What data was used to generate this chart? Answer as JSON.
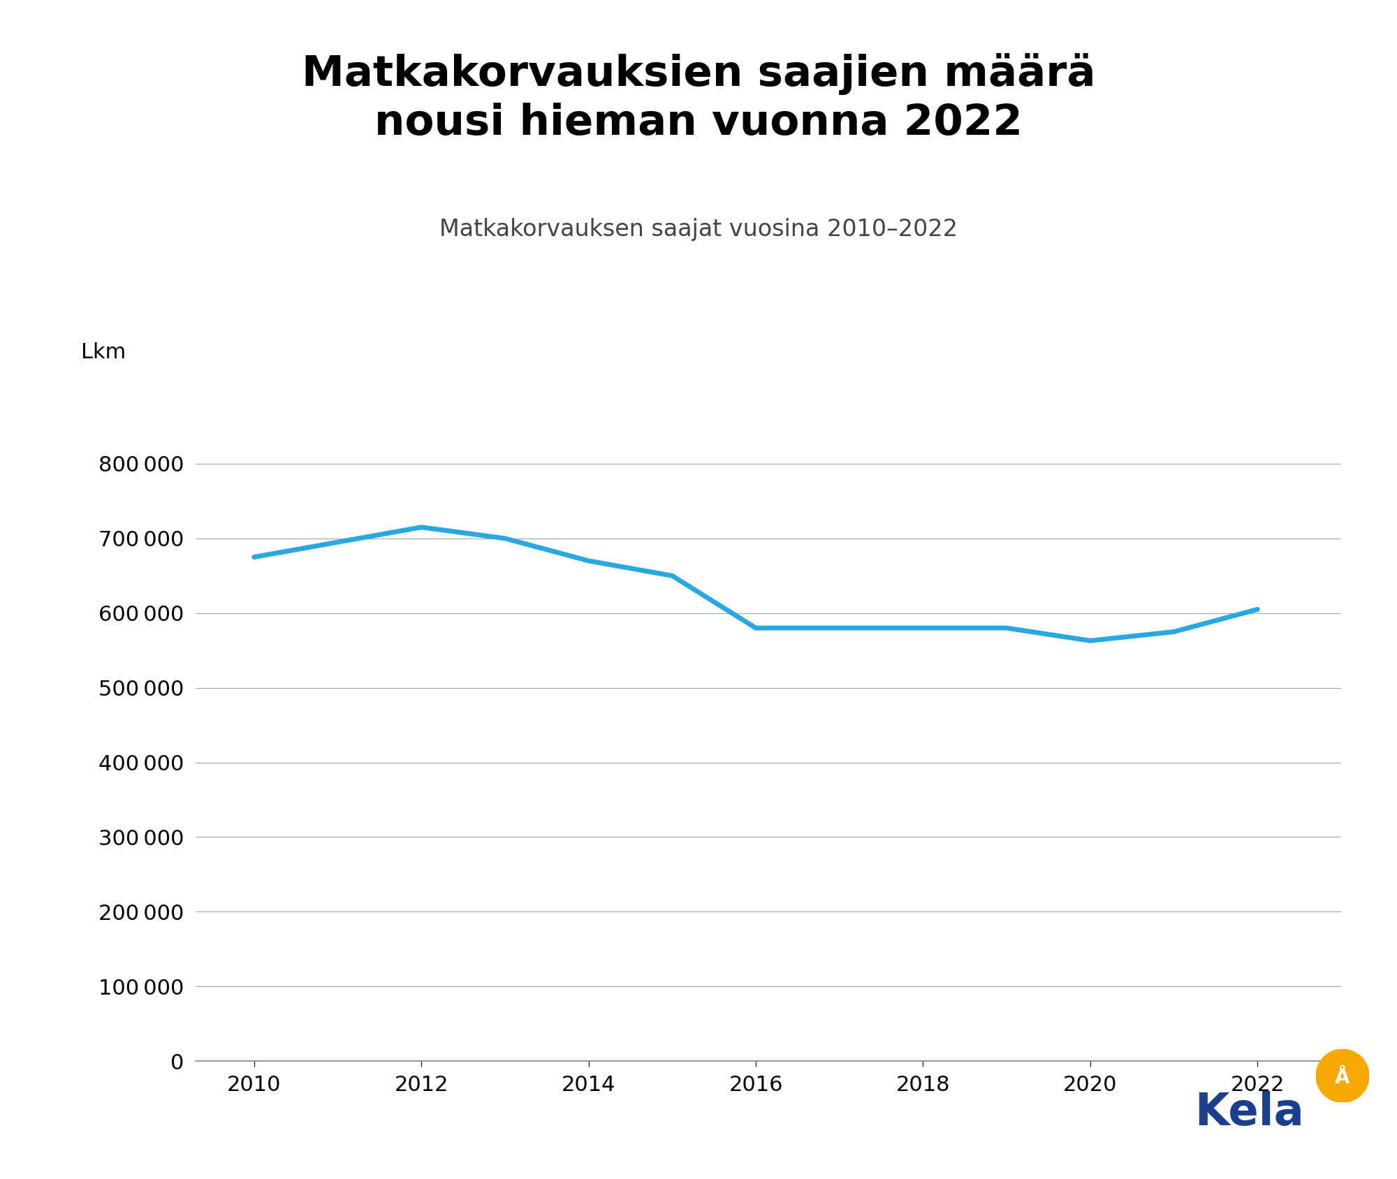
{
  "title": "Matkakorvauksien saajien määrä\nnousi hieman vuonna 2022",
  "subtitle": "Matkakorvauksen saajat vuosina 2010–2022",
  "ylabel": "Lkm",
  "years": [
    2010,
    2011,
    2012,
    2013,
    2014,
    2015,
    2016,
    2017,
    2018,
    2019,
    2020,
    2021,
    2022
  ],
  "values": [
    675000,
    695000,
    715000,
    700000,
    670000,
    650000,
    580000,
    580000,
    580000,
    580000,
    563000,
    575000,
    605000
  ],
  "line_color": "#29a8e0",
  "line_width": 5.0,
  "ylim": [
    0,
    900000
  ],
  "yticks": [
    0,
    100000,
    200000,
    300000,
    400000,
    500000,
    600000,
    700000,
    800000
  ],
  "xticks": [
    2010,
    2012,
    2014,
    2016,
    2018,
    2020,
    2022
  ],
  "background_color": "#ffffff",
  "title_fontsize": 44,
  "subtitle_fontsize": 24,
  "tick_fontsize": 22,
  "ylabel_fontsize": 22,
  "kela_text_color": "#1a3f8f",
  "kela_badge_color": "#f5a800",
  "grid_color": "#aaaaaa",
  "spine_color": "#888888"
}
